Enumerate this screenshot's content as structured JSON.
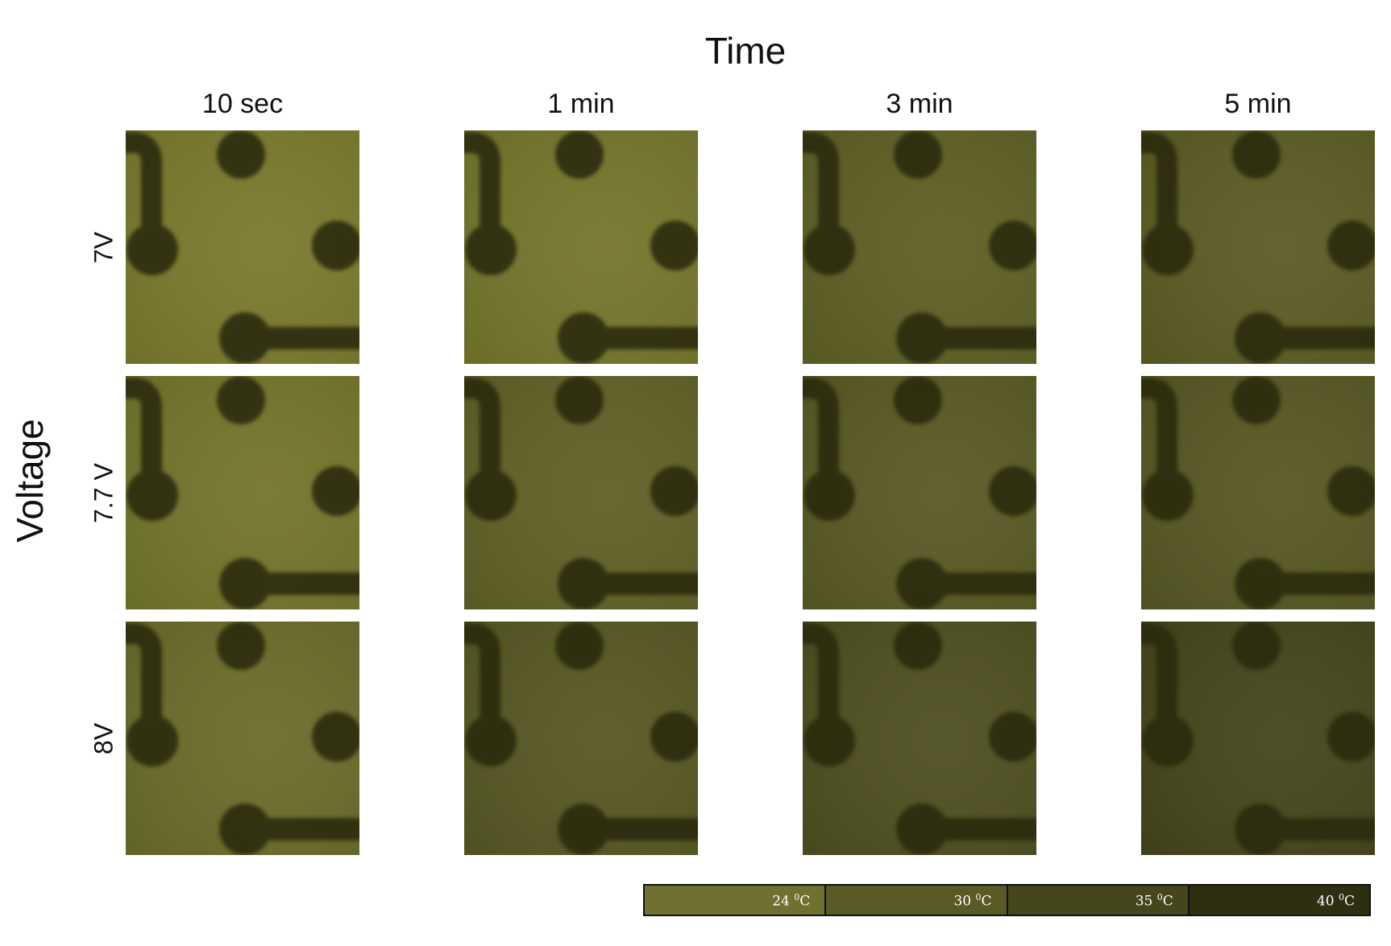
{
  "title": "Time",
  "y_axis_label": "Voltage",
  "columns": [
    "10 sec",
    "1 min",
    "3 min",
    "5 min"
  ],
  "rows": [
    {
      "label": "7V",
      "panel_colors": [
        "#7a7a2e",
        "#75762c",
        "#5f6025",
        "#5b5c24"
      ]
    },
    {
      "label": "7.7 V",
      "panel_colors": [
        "#74752c",
        "#606127",
        "#595a24",
        "#575823"
      ]
    },
    {
      "label": "8V",
      "panel_colors": [
        "#6b6c2a",
        "#575823",
        "#4e4f20",
        "#45461c"
      ]
    }
  ],
  "pattern_color": "#2b2c10",
  "temperature_scale": [
    {
      "value": "24",
      "unit": "C",
      "color": "#707030"
    },
    {
      "value": "30",
      "unit": "C",
      "color": "#595a25"
    },
    {
      "value": "35",
      "unit": "C",
      "color": "#45461c"
    },
    {
      "value": "40",
      "unit": "C",
      "color": "#2e2f12"
    }
  ]
}
